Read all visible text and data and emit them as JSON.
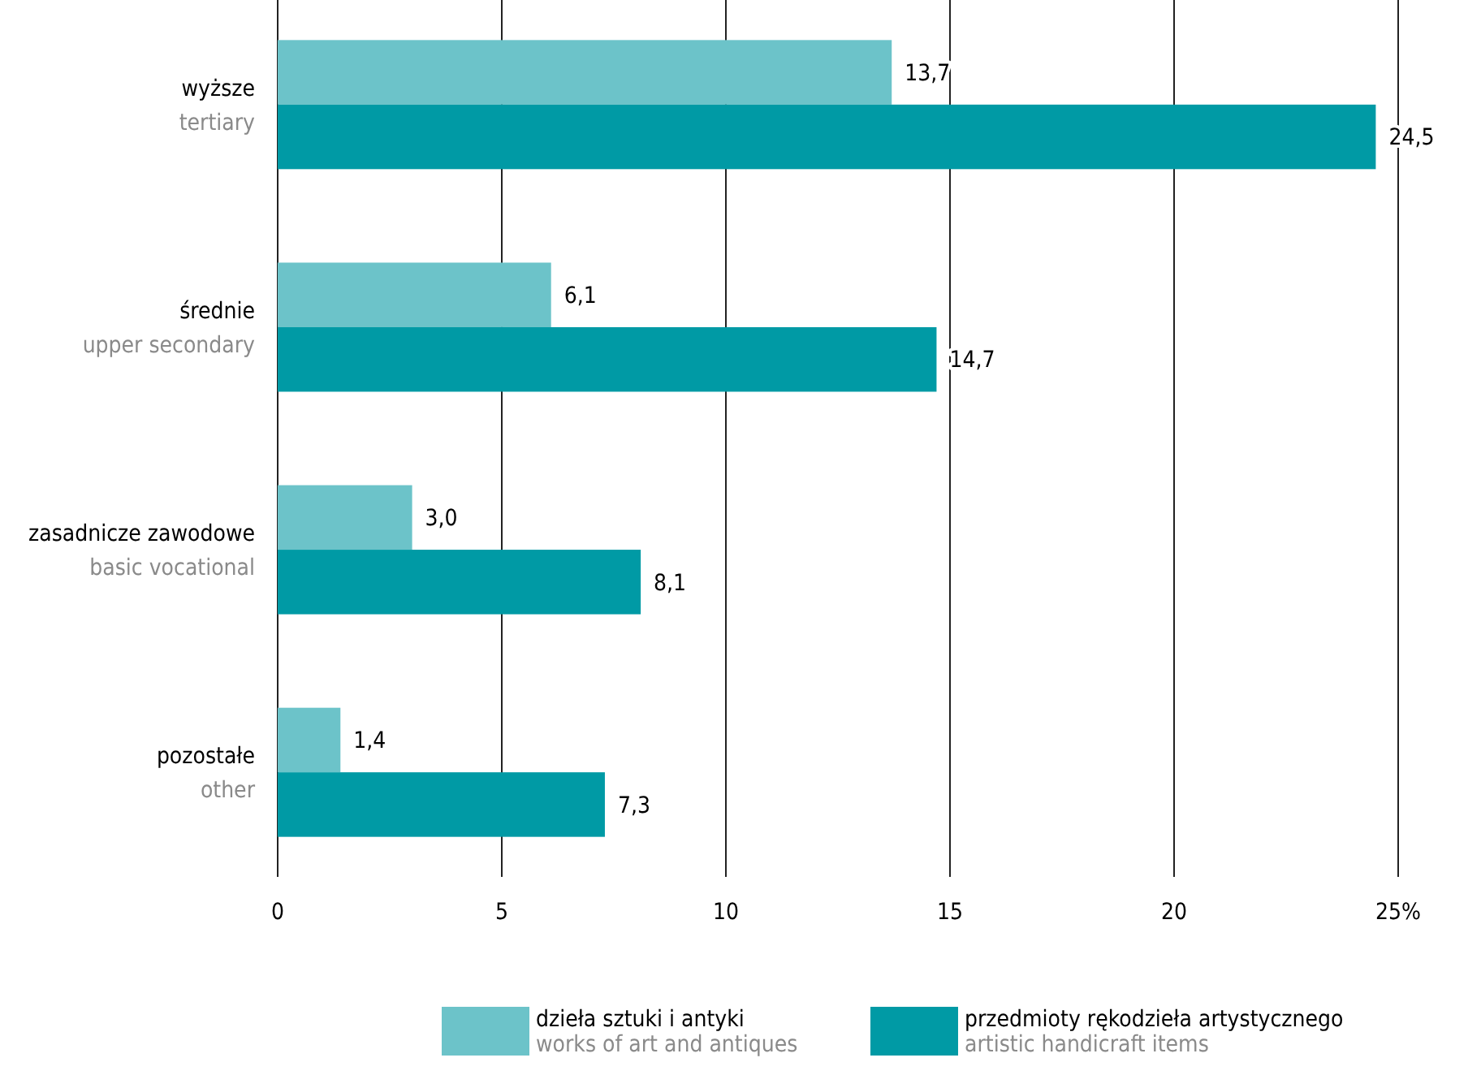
{
  "chart_data": {
    "type": "bar",
    "orientation": "horizontal",
    "categories": [
      "wyższe\ntertiary",
      "średnie\nupper secondary",
      "zasadnicze zawodowe\nbasic vocational",
      "pozostałe\nother"
    ],
    "series": [
      {
        "name": "dzieła sztuki i antyki\nworks of art and antiques",
        "color": "#6cc3c9",
        "values": [
          13.7,
          6.1,
          3.0,
          1.4
        ],
        "value_labels": [
          "13,7",
          "6,1",
          "3,0",
          "1,4"
        ]
      },
      {
        "name": "przedmioty rękodzieła artystycznego\nartistic handicraft items",
        "color": "#009aa5",
        "values": [
          24.5,
          14.7,
          8.1,
          7.3
        ],
        "value_labels": [
          "24,5",
          "14,7",
          "8,1",
          "7,3"
        ]
      }
    ],
    "xlim": [
      0,
      25
    ],
    "xticks": [
      0,
      5,
      10,
      15,
      20,
      {
        "value": 25,
        "label": "25%"
      }
    ],
    "grid": "x",
    "legend": "bottom"
  }
}
